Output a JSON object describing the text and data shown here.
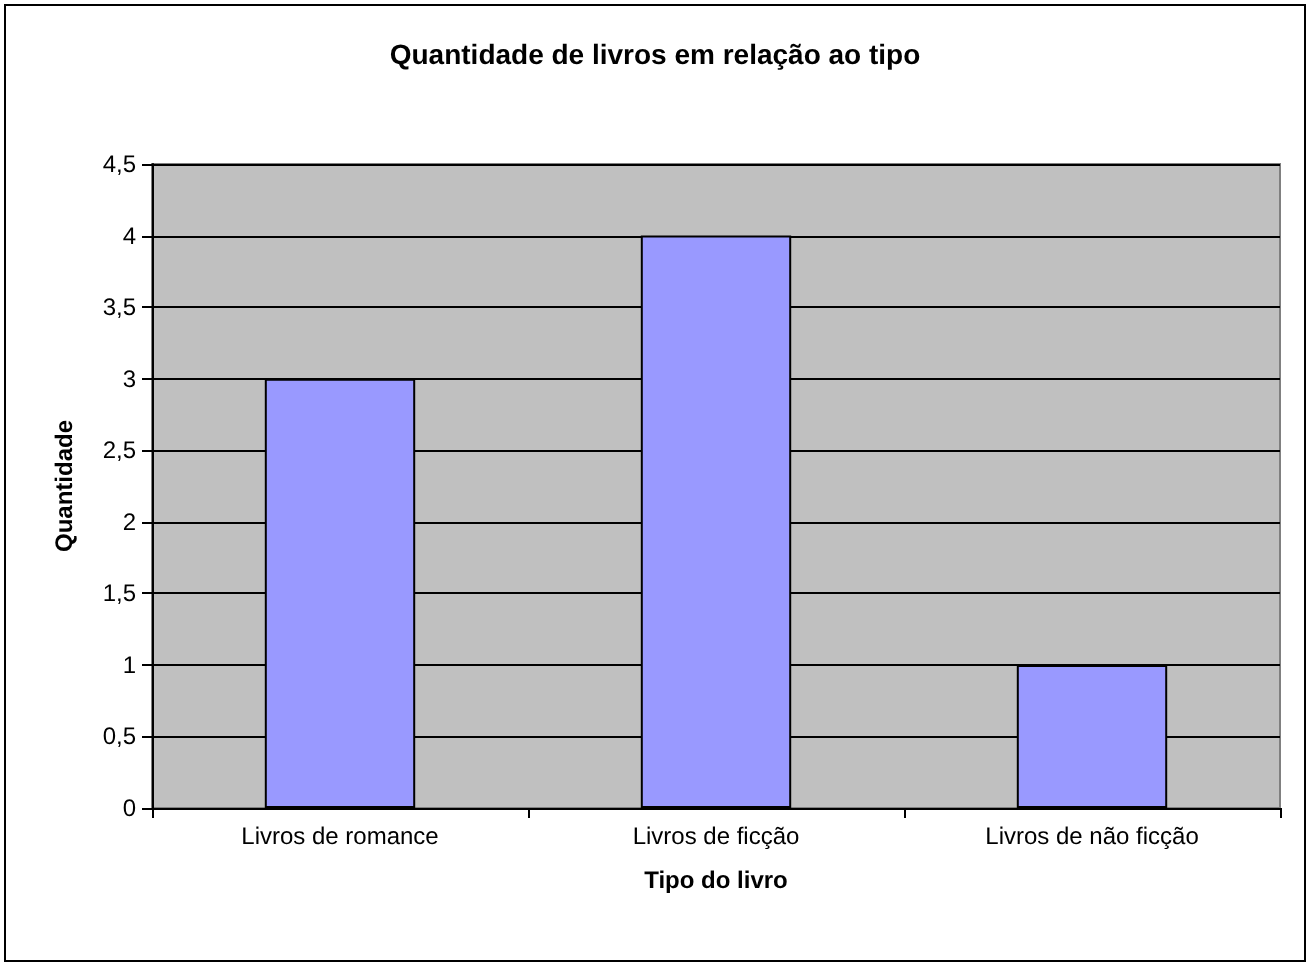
{
  "chart_data": {
    "type": "bar",
    "title": "Quantidade de livros em relação ao tipo",
    "xlabel": "Tipo do livro",
    "ylabel": "Quantidade",
    "categories": [
      "Livros de romance",
      "Livros de ficção",
      "Livros de não ficção"
    ],
    "values": [
      3,
      4,
      1
    ],
    "color": "#9999ff",
    "ylim": [
      0,
      4.5
    ],
    "yticks": [
      0,
      {
        "value": 0.5,
        "label": "0,5"
      },
      1,
      {
        "value": 1.5,
        "label": "1,5"
      },
      2,
      {
        "value": 2.5,
        "label": "2,5"
      },
      3,
      {
        "value": 3.5,
        "label": "3,5"
      },
      4,
      {
        "value": 4.5,
        "label": "4,5"
      }
    ],
    "grid": "y"
  }
}
